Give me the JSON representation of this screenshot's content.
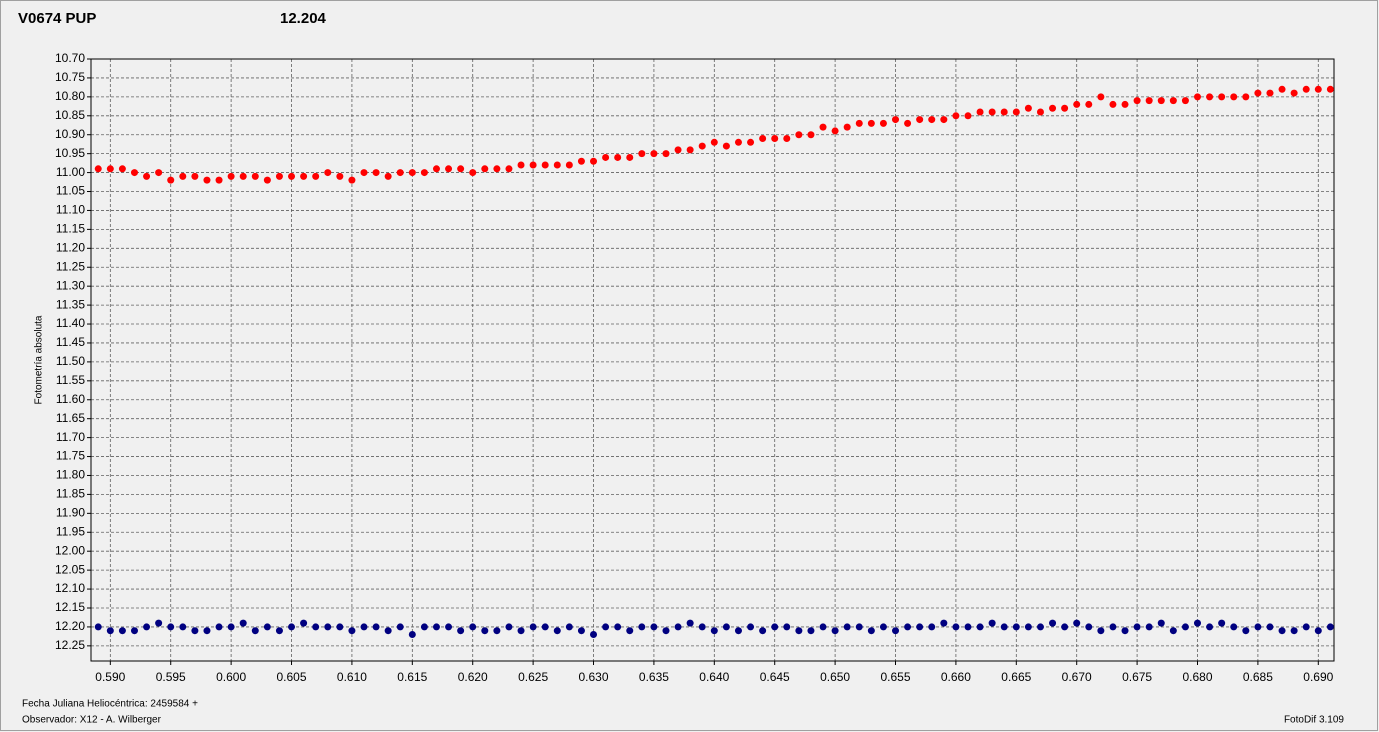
{
  "chart_data": {
    "type": "scatter",
    "title": "V0674 PUP",
    "subtitle": "12.204",
    "ylabel": "Fotometría absoluta",
    "xlabel": "Fecha Juliana Heliocéntrica: 2459584 +",
    "observer": "Observador: X12 - A. Wilberger",
    "software": "FotoDif 3.109",
    "grid": true,
    "xlim": [
      0.5884,
      0.6913
    ],
    "ylim": [
      12.29,
      10.7
    ],
    "xticks": [
      {
        "value": 0.59,
        "label": "0.590"
      },
      {
        "value": 0.595,
        "label": "0.595"
      },
      {
        "value": 0.6,
        "label": "0.600"
      },
      {
        "value": 0.605,
        "label": "0.605"
      },
      {
        "value": 0.61,
        "label": "0.610"
      },
      {
        "value": 0.615,
        "label": "0.615"
      },
      {
        "value": 0.62,
        "label": "0.620"
      },
      {
        "value": 0.625,
        "label": "0.625"
      },
      {
        "value": 0.63,
        "label": "0.630"
      },
      {
        "value": 0.635,
        "label": "0.635"
      },
      {
        "value": 0.64,
        "label": "0.640"
      },
      {
        "value": 0.645,
        "label": "0.645"
      },
      {
        "value": 0.65,
        "label": "0.650"
      },
      {
        "value": 0.655,
        "label": "0.655"
      },
      {
        "value": 0.66,
        "label": "0.660"
      },
      {
        "value": 0.665,
        "label": "0.665"
      },
      {
        "value": 0.67,
        "label": "0.670"
      },
      {
        "value": 0.675,
        "label": "0.675"
      },
      {
        "value": 0.68,
        "label": "0.680"
      },
      {
        "value": 0.685,
        "label": "0.685"
      },
      {
        "value": 0.69,
        "label": "0.690"
      }
    ],
    "yticks": [
      {
        "value": 10.7,
        "label": "10.70"
      },
      10.75,
      {
        "value": 10.8,
        "label": "10.80"
      },
      10.85,
      {
        "value": 10.9,
        "label": "10.90"
      },
      10.95,
      {
        "value": 11,
        "label": "11.00"
      },
      11.05,
      {
        "value": 11.1,
        "label": "11.10"
      },
      11.15,
      {
        "value": 11.2,
        "label": "11.20"
      },
      11.25,
      {
        "value": 11.3,
        "label": "11.30"
      },
      11.35,
      {
        "value": 11.4,
        "label": "11.40"
      },
      11.45,
      {
        "value": 11.5,
        "label": "11.50"
      },
      11.55,
      {
        "value": 11.6,
        "label": "11.60"
      },
      11.65,
      {
        "value": 11.7,
        "label": "11.70"
      },
      11.75,
      {
        "value": 11.8,
        "label": "11.80"
      },
      11.85,
      {
        "value": 11.9,
        "label": "11.90"
      },
      11.95,
      {
        "value": 12,
        "label": "12.00"
      },
      12.05,
      {
        "value": 12.1,
        "label": "12.10"
      },
      12.15,
      {
        "value": 12.2,
        "label": "12.20"
      },
      12.25
    ],
    "x": [
      0.589,
      0.59,
      0.591,
      0.592,
      0.593,
      0.594,
      0.595,
      0.596,
      0.597,
      0.598,
      0.599,
      0.6,
      0.601,
      0.602,
      0.603,
      0.604,
      0.605,
      0.606,
      0.607,
      0.608,
      0.609,
      0.61,
      0.611,
      0.612,
      0.613,
      0.614,
      0.615,
      0.616,
      0.617,
      0.618,
      0.619,
      0.62,
      0.621,
      0.622,
      0.623,
      0.624,
      0.625,
      0.626,
      0.627,
      0.628,
      0.629,
      0.63,
      0.631,
      0.632,
      0.633,
      0.634,
      0.635,
      0.636,
      0.637,
      0.638,
      0.639,
      0.64,
      0.641,
      0.642,
      0.643,
      0.644,
      0.645,
      0.646,
      0.647,
      0.648,
      0.649,
      0.65,
      0.651,
      0.652,
      0.653,
      0.654,
      0.655,
      0.656,
      0.657,
      0.658,
      0.659,
      0.66,
      0.661,
      0.662,
      0.663,
      0.664,
      0.665,
      0.666,
      0.667,
      0.668,
      0.669,
      0.67,
      0.671,
      0.672,
      0.673,
      0.674,
      0.675,
      0.676,
      0.677,
      0.678,
      0.679,
      0.68,
      0.681,
      0.682,
      0.683,
      0.684,
      0.685,
      0.686,
      0.687,
      0.688,
      0.689,
      0.69,
      0.691
    ],
    "series": [
      {
        "color": "#ff0000",
        "values": [
          10.99,
          10.99,
          10.99,
          11.0,
          11.01,
          11.0,
          11.02,
          11.01,
          11.01,
          11.02,
          11.02,
          11.01,
          11.01,
          11.01,
          11.02,
          11.01,
          11.01,
          11.01,
          11.01,
          11.0,
          11.01,
          11.02,
          11.0,
          11.0,
          11.01,
          11.0,
          11.0,
          11.0,
          10.99,
          10.99,
          10.99,
          11.0,
          10.99,
          10.99,
          10.99,
          10.98,
          10.98,
          10.98,
          10.98,
          10.98,
          10.97,
          10.97,
          10.96,
          10.96,
          10.96,
          10.95,
          10.95,
          10.95,
          10.94,
          10.94,
          10.93,
          10.92,
          10.93,
          10.92,
          10.92,
          10.91,
          10.91,
          10.91,
          10.9,
          10.9,
          10.88,
          10.89,
          10.88,
          10.87,
          10.87,
          10.87,
          10.86,
          10.87,
          10.86,
          10.86,
          10.86,
          10.85,
          10.85,
          10.84,
          10.84,
          10.84,
          10.84,
          10.83,
          10.84,
          10.83,
          10.83,
          10.82,
          10.82,
          10.8,
          10.82,
          10.82,
          10.81,
          10.81,
          10.81,
          10.81,
          10.81,
          10.8,
          10.8,
          10.8,
          10.8,
          10.8,
          10.79,
          10.79,
          10.78,
          10.79,
          10.78,
          10.78,
          10.78
        ]
      },
      {
        "color": "#000080",
        "values": [
          12.2,
          12.21,
          12.21,
          12.21,
          12.2,
          12.19,
          12.2,
          12.2,
          12.21,
          12.21,
          12.2,
          12.2,
          12.19,
          12.21,
          12.2,
          12.21,
          12.2,
          12.19,
          12.2,
          12.2,
          12.2,
          12.21,
          12.2,
          12.2,
          12.21,
          12.2,
          12.22,
          12.2,
          12.2,
          12.2,
          12.21,
          12.2,
          12.21,
          12.21,
          12.2,
          12.21,
          12.2,
          12.2,
          12.21,
          12.2,
          12.21,
          12.22,
          12.2,
          12.2,
          12.21,
          12.2,
          12.2,
          12.21,
          12.2,
          12.19,
          12.2,
          12.21,
          12.2,
          12.21,
          12.2,
          12.21,
          12.2,
          12.2,
          12.21,
          12.21,
          12.2,
          12.21,
          12.2,
          12.2,
          12.21,
          12.2,
          12.21,
          12.2,
          12.2,
          12.2,
          12.19,
          12.2,
          12.2,
          12.2,
          12.19,
          12.2,
          12.2,
          12.2,
          12.2,
          12.19,
          12.2,
          12.19,
          12.2,
          12.21,
          12.2,
          12.21,
          12.2,
          12.2,
          12.19,
          12.21,
          12.2,
          12.19,
          12.2,
          12.19,
          12.2,
          12.21,
          12.2,
          12.2,
          12.21,
          12.21,
          12.2,
          12.21,
          12.2
        ]
      }
    ]
  }
}
